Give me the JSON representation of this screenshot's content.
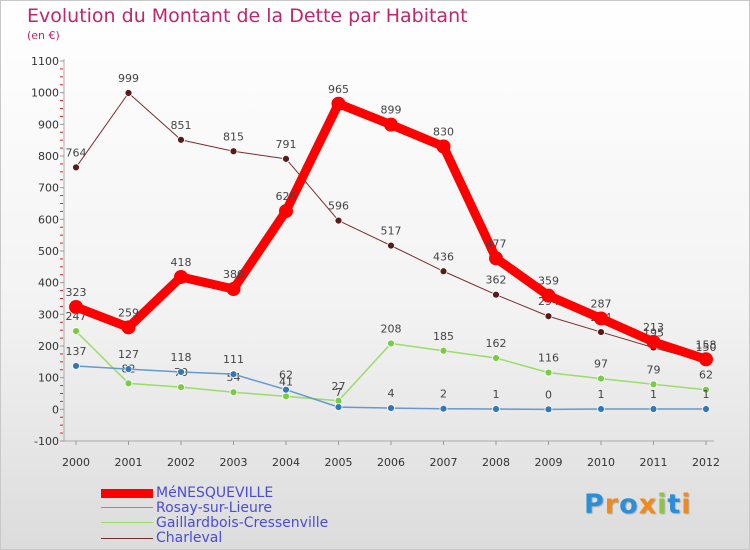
{
  "chart_data": {
    "type": "line",
    "title": "Evolution du Montant de la Dette par Habitant",
    "ylabel": "(en €)",
    "xlabel": "",
    "categories": [
      "2000",
      "2001",
      "2002",
      "2003",
      "2004",
      "2005",
      "2006",
      "2007",
      "2008",
      "2009",
      "2010",
      "2011",
      "2012"
    ],
    "yticks": [
      -100,
      0,
      100,
      200,
      300,
      400,
      500,
      600,
      700,
      800,
      900,
      1000,
      1100
    ],
    "ylim": [
      -100,
      1100
    ],
    "grid": false,
    "series": [
      {
        "name": "Charleval",
        "color": "#7a2c2c",
        "dot": "#5a1a1a",
        "values": [
          764,
          999,
          851,
          815,
          791,
          596,
          517,
          436,
          362,
          294,
          244,
          195,
          150
        ],
        "labels": [
          "764",
          "999",
          "851",
          "815",
          "791",
          "596",
          "517",
          "436",
          "362",
          "294",
          "244",
          "195",
          "150"
        ]
      },
      {
        "name": "Gaillardbois-Cressenville",
        "color": "#99dd66",
        "dot": "#77cc44",
        "values": [
          247,
          82,
          70,
          54,
          41,
          27,
          208,
          185,
          162,
          116,
          97,
          79,
          62
        ],
        "labels": [
          "247",
          "82",
          "70",
          "54",
          "41",
          "27",
          "208",
          "185",
          "162",
          "116",
          "97",
          "79",
          "62"
        ]
      },
      {
        "name": "Rosay-sur-Lieure",
        "color": "#6699cc",
        "dot": "#3377bb",
        "values": [
          137,
          127,
          118,
          111,
          62,
          7,
          4,
          2,
          1,
          0,
          1,
          1,
          1
        ],
        "labels": [
          "137",
          "127",
          "118",
          "111",
          "62",
          "7",
          "4",
          "2",
          "1",
          "0",
          "1",
          "1",
          "1"
        ]
      },
      {
        "name": "MéNESQUEVILLE",
        "color": "#ff0000",
        "dot": "#ff0000",
        "values": [
          323,
          259,
          418,
          380,
          626,
          965,
          899,
          830,
          477,
          359,
          287,
          213,
          158
        ],
        "labels": [
          "323",
          "259",
          "418",
          "380",
          "626",
          "965",
          "899",
          "830",
          "477",
          "359",
          "287",
          "213",
          "158"
        ]
      }
    ]
  },
  "legend": {
    "items": [
      {
        "label": "MéNESQUEVILLE",
        "color": "#ff0000"
      },
      {
        "label": "Rosay-sur-Lieure",
        "color": "#6699cc"
      },
      {
        "label": "Gaillardbois-Cressenville",
        "color": "#99dd66"
      },
      {
        "label": "Charleval",
        "color": "#7a2c2c"
      }
    ]
  },
  "logo": {
    "letters": [
      "P",
      "r",
      "o",
      "x",
      "i",
      "t",
      "i"
    ],
    "colors": [
      "#2a8fd6",
      "#f08a1c",
      "#2a8fd6",
      "#f08a1c",
      "#8dc63f",
      "#2a8fd6",
      "#f08a1c"
    ]
  }
}
